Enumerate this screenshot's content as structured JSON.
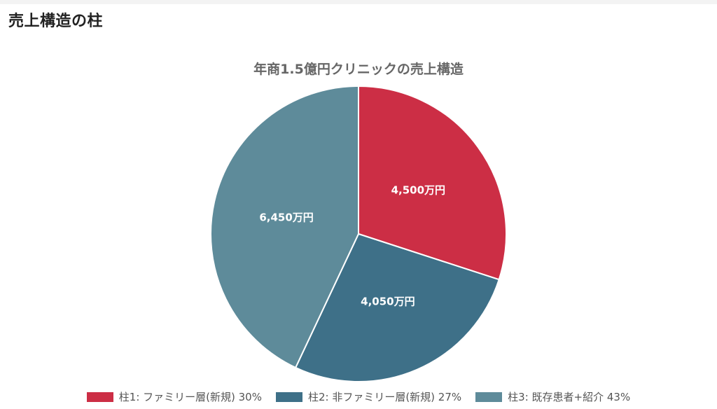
{
  "page": {
    "title": "売上構造の柱"
  },
  "chart_data": {
    "type": "pie",
    "title": "年商1.5億円クリニックの売上構造",
    "categories": [
      "柱1: ファミリー層(新規) 30%",
      "柱2: 非ファミリー層(新規) 27%",
      "柱3: 既存患者+紹介 43%"
    ],
    "values": [
      4500,
      4050,
      6450
    ],
    "data_labels": [
      "4,500万円",
      "4,050万円",
      "6,450万円"
    ],
    "colors": [
      "#cc2e45",
      "#3e7088",
      "#5e8b9a"
    ],
    "legend_position": "bottom"
  }
}
